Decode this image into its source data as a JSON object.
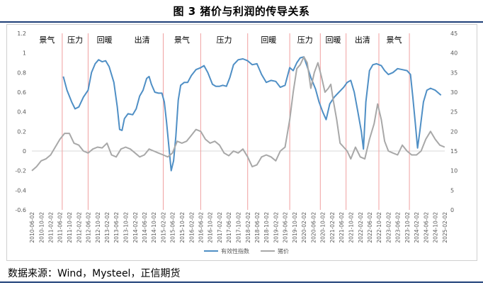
{
  "title": "图 3 猪价与利润的传导关系",
  "source": "数据来源：Wind，Mysteel，正信期货",
  "colors": {
    "efficiency": "#4f8fc5",
    "price": "#a8a8a8",
    "phase_line": "#f0a0a0",
    "axis_text": "#595959",
    "zero_line": "#d9d9d9"
  },
  "chart_data": {
    "type": "line",
    "left_axis": {
      "min": -0.6,
      "max": 1.2,
      "step": 0.2,
      "ticks": [
        "-0.6",
        "-0.4",
        "-0.2",
        "0",
        "0.2",
        "0.4",
        "0.6",
        "0.8",
        "1",
        "1.2"
      ]
    },
    "right_axis": {
      "min": 0,
      "max": 45,
      "step": 5,
      "ticks": [
        "0",
        "5",
        "10",
        "15",
        "20",
        "25",
        "30",
        "35",
        "40",
        "45"
      ]
    },
    "x_range": [
      "2010-06-02",
      "2025-02-02"
    ],
    "x_ticks": [
      "2010-06-02",
      "2010-10-02",
      "2011-02-02",
      "2011-06-02",
      "2011-10-02",
      "2012-02-02",
      "2012-06-02",
      "2012-10-02",
      "2013-02-02",
      "2013-06-02",
      "2013-10-02",
      "2014-02-02",
      "2014-06-02",
      "2014-10-02",
      "2015-02-02",
      "2015-06-02",
      "2015-10-02",
      "2016-02-02",
      "2016-06-02",
      "2016-10-02",
      "2017-02-02",
      "2017-06-02",
      "2017-10-02",
      "2018-02-02",
      "2018-06-02",
      "2018-10-02",
      "2019-02-02",
      "2019-06-02",
      "2019-10-02",
      "2020-02-02",
      "2020-06-02",
      "2020-10-02",
      "2021-02-02",
      "2021-06-02",
      "2021-10-02",
      "2022-02-02",
      "2022-06-02",
      "2022-10-02",
      "2023-02-02",
      "2023-06-02",
      "2023-10-02",
      "2024-02-02",
      "2024-06-02",
      "2024-10-02",
      "2025-02-02"
    ],
    "phase_boundaries": [
      "2011-07-01",
      "2012-06-01",
      "2015-02-01",
      "2016-06-01",
      "2018-02-01",
      "2019-08-01",
      "2020-09-01",
      "2021-08-01",
      "2022-10-01",
      "2023-11-01"
    ],
    "phases": [
      {
        "label": "景气",
        "start": "2010-06-02",
        "end": "2011-07-01"
      },
      {
        "label": "压力",
        "start": "2011-07-01",
        "end": "2012-06-01"
      },
      {
        "label": "回暖",
        "start": "2012-06-01",
        "end": "2013-08-01"
      },
      {
        "label": "出清",
        "start": "2013-08-01",
        "end": "2015-02-01"
      },
      {
        "label": "景气",
        "start": "2015-02-01",
        "end": "2016-06-01"
      },
      {
        "label": "压力",
        "start": "2016-06-01",
        "end": "2018-02-01"
      },
      {
        "label": "回暖",
        "start": "2018-02-01",
        "end": "2019-08-01"
      },
      {
        "label": "压力",
        "start": "2019-08-01",
        "end": "2020-09-01"
      },
      {
        "label": "回暖",
        "start": "2020-09-01",
        "end": "2021-08-01"
      },
      {
        "label": "出清",
        "start": "2021-08-01",
        "end": "2022-10-01"
      },
      {
        "label": "景气",
        "start": "2022-10-01",
        "end": "2023-11-01"
      }
    ],
    "series": [
      {
        "name": "有效性指数",
        "axis": "left",
        "points": [
          [
            "2011-07-15",
            0.76
          ],
          [
            "2011-09-01",
            0.62
          ],
          [
            "2011-11-01",
            0.5
          ],
          [
            "2011-12-15",
            0.43
          ],
          [
            "2012-02-01",
            0.45
          ],
          [
            "2012-04-01",
            0.55
          ],
          [
            "2012-06-01",
            0.62
          ],
          [
            "2012-07-15",
            0.8
          ],
          [
            "2012-09-01",
            0.89
          ],
          [
            "2012-10-15",
            0.93
          ],
          [
            "2012-12-01",
            0.91
          ],
          [
            "2013-01-15",
            0.92
          ],
          [
            "2013-03-01",
            0.86
          ],
          [
            "2013-05-01",
            0.7
          ],
          [
            "2013-06-15",
            0.45
          ],
          [
            "2013-07-15",
            0.22
          ],
          [
            "2013-08-15",
            0.21
          ],
          [
            "2013-09-15",
            0.33
          ],
          [
            "2013-11-01",
            0.38
          ],
          [
            "2014-01-01",
            0.37
          ],
          [
            "2014-02-15",
            0.43
          ],
          [
            "2014-04-01",
            0.56
          ],
          [
            "2014-05-15",
            0.62
          ],
          [
            "2014-07-01",
            0.74
          ],
          [
            "2014-08-01",
            0.76
          ],
          [
            "2014-09-01",
            0.68
          ],
          [
            "2014-10-15",
            0.6
          ],
          [
            "2014-12-01",
            0.59
          ],
          [
            "2015-01-15",
            0.59
          ],
          [
            "2015-02-15",
            0.5
          ],
          [
            "2015-03-15",
            0.3
          ],
          [
            "2015-04-15",
            0.05
          ],
          [
            "2015-05-15",
            -0.2
          ],
          [
            "2015-06-15",
            -0.1
          ],
          [
            "2015-07-15",
            0.15
          ],
          [
            "2015-08-15",
            0.52
          ],
          [
            "2015-09-15",
            0.67
          ],
          [
            "2015-11-01",
            0.7
          ],
          [
            "2015-12-15",
            0.7
          ],
          [
            "2016-02-01",
            0.77
          ],
          [
            "2016-04-01",
            0.83
          ],
          [
            "2016-06-01",
            0.85
          ],
          [
            "2016-07-15",
            0.87
          ],
          [
            "2016-09-01",
            0.8
          ],
          [
            "2016-11-01",
            0.68
          ],
          [
            "2016-12-15",
            0.66
          ],
          [
            "2017-02-01",
            0.66
          ],
          [
            "2017-03-15",
            0.67
          ],
          [
            "2017-05-01",
            0.66
          ],
          [
            "2017-06-15",
            0.75
          ],
          [
            "2017-08-01",
            0.88
          ],
          [
            "2017-10-01",
            0.93
          ],
          [
            "2017-12-01",
            0.94
          ],
          [
            "2018-02-01",
            0.92
          ],
          [
            "2018-04-01",
            0.88
          ],
          [
            "2018-06-01",
            0.89
          ],
          [
            "2018-08-01",
            0.78
          ],
          [
            "2018-10-01",
            0.7
          ],
          [
            "2018-12-01",
            0.72
          ],
          [
            "2019-02-01",
            0.71
          ],
          [
            "2019-04-01",
            0.65
          ],
          [
            "2019-06-01",
            0.67
          ],
          [
            "2019-08-01",
            0.85
          ],
          [
            "2019-09-15",
            0.82
          ],
          [
            "2019-11-01",
            0.9
          ],
          [
            "2019-12-15",
            0.95
          ],
          [
            "2020-02-01",
            0.96
          ],
          [
            "2020-03-15",
            0.86
          ],
          [
            "2020-05-01",
            0.75
          ],
          [
            "2020-07-01",
            0.63
          ],
          [
            "2020-08-15",
            0.5
          ],
          [
            "2020-10-01",
            0.4
          ],
          [
            "2020-11-15",
            0.32
          ],
          [
            "2021-01-01",
            0.48
          ],
          [
            "2021-03-01",
            0.55
          ],
          [
            "2021-05-01",
            0.6
          ],
          [
            "2021-07-01",
            0.65
          ],
          [
            "2021-08-15",
            0.7
          ],
          [
            "2021-10-01",
            0.72
          ],
          [
            "2021-11-15",
            0.6
          ],
          [
            "2022-01-01",
            0.4
          ],
          [
            "2022-02-15",
            0.2
          ],
          [
            "2022-03-15",
            0.02
          ],
          [
            "2022-04-15",
            0.5
          ],
          [
            "2022-06-01",
            0.82
          ],
          [
            "2022-07-15",
            0.88
          ],
          [
            "2022-09-01",
            0.89
          ],
          [
            "2022-11-01",
            0.87
          ],
          [
            "2022-12-15",
            0.82
          ],
          [
            "2023-02-01",
            0.78
          ],
          [
            "2023-04-01",
            0.8
          ],
          [
            "2023-06-01",
            0.84
          ],
          [
            "2023-08-01",
            0.83
          ],
          [
            "2023-10-01",
            0.82
          ],
          [
            "2023-11-15",
            0.78
          ],
          [
            "2023-12-15",
            0.55
          ],
          [
            "2024-01-15",
            0.3
          ],
          [
            "2024-02-15",
            0.03
          ],
          [
            "2024-03-15",
            0.2
          ],
          [
            "2024-05-01",
            0.5
          ],
          [
            "2024-06-15",
            0.62
          ],
          [
            "2024-08-01",
            0.64
          ],
          [
            "2024-10-01",
            0.62
          ],
          [
            "2024-12-15",
            0.57
          ]
        ]
      },
      {
        "name": "猪价",
        "axis": "right",
        "points": [
          [
            "2010-06-02",
            10.0
          ],
          [
            "2010-08-01",
            11.0
          ],
          [
            "2010-10-01",
            12.5
          ],
          [
            "2010-12-01",
            13.0
          ],
          [
            "2011-02-01",
            14.0
          ],
          [
            "2011-04-01",
            16.0
          ],
          [
            "2011-06-01",
            18.0
          ],
          [
            "2011-08-01",
            19.5
          ],
          [
            "2011-10-01",
            19.5
          ],
          [
            "2011-12-01",
            17.0
          ],
          [
            "2012-02-01",
            16.5
          ],
          [
            "2012-04-01",
            15.0
          ],
          [
            "2012-06-01",
            14.5
          ],
          [
            "2012-08-01",
            15.5
          ],
          [
            "2012-10-01",
            16.0
          ],
          [
            "2012-12-01",
            15.8
          ],
          [
            "2013-02-01",
            17.0
          ],
          [
            "2013-04-01",
            14.0
          ],
          [
            "2013-06-01",
            13.5
          ],
          [
            "2013-08-01",
            15.5
          ],
          [
            "2013-10-01",
            16.0
          ],
          [
            "2013-12-01",
            15.5
          ],
          [
            "2014-02-01",
            14.5
          ],
          [
            "2014-04-01",
            13.5
          ],
          [
            "2014-06-01",
            14.0
          ],
          [
            "2014-08-01",
            15.5
          ],
          [
            "2014-10-01",
            15.0
          ],
          [
            "2014-12-01",
            14.5
          ],
          [
            "2015-02-01",
            14.0
          ],
          [
            "2015-04-01",
            13.5
          ],
          [
            "2015-06-01",
            14.5
          ],
          [
            "2015-08-01",
            17.5
          ],
          [
            "2015-10-01",
            17.0
          ],
          [
            "2015-12-01",
            17.5
          ],
          [
            "2016-02-01",
            19.0
          ],
          [
            "2016-04-01",
            20.5
          ],
          [
            "2016-06-01",
            20.0
          ],
          [
            "2016-08-01",
            18.0
          ],
          [
            "2016-10-01",
            17.0
          ],
          [
            "2016-12-01",
            17.5
          ],
          [
            "2017-02-01",
            16.5
          ],
          [
            "2017-04-01",
            14.5
          ],
          [
            "2017-06-01",
            13.8
          ],
          [
            "2017-08-01",
            15.0
          ],
          [
            "2017-10-01",
            14.5
          ],
          [
            "2017-12-01",
            15.5
          ],
          [
            "2018-02-01",
            13.5
          ],
          [
            "2018-04-01",
            11.0
          ],
          [
            "2018-06-01",
            11.5
          ],
          [
            "2018-08-01",
            13.5
          ],
          [
            "2018-10-01",
            14.0
          ],
          [
            "2018-12-01",
            13.5
          ],
          [
            "2019-02-01",
            12.5
          ],
          [
            "2019-04-01",
            15.0
          ],
          [
            "2019-06-01",
            16.0
          ],
          [
            "2019-08-01",
            23.0
          ],
          [
            "2019-09-15",
            30.0
          ],
          [
            "2019-11-01",
            36.0
          ],
          [
            "2019-12-15",
            37.0
          ],
          [
            "2020-02-01",
            39.0
          ],
          [
            "2020-03-15",
            37.5
          ],
          [
            "2020-05-01",
            31.0
          ],
          [
            "2020-06-15",
            35.0
          ],
          [
            "2020-08-01",
            37.5
          ],
          [
            "2020-09-15",
            34.0
          ],
          [
            "2020-11-01",
            30.0
          ],
          [
            "2020-12-15",
            31.0
          ],
          [
            "2021-01-15",
            32.0
          ],
          [
            "2021-02-15",
            28.0
          ],
          [
            "2021-04-01",
            23.0
          ],
          [
            "2021-05-15",
            17.0
          ],
          [
            "2021-07-01",
            16.0
          ],
          [
            "2021-08-15",
            15.0
          ],
          [
            "2021-10-01",
            13.0
          ],
          [
            "2021-12-01",
            16.0
          ],
          [
            "2022-02-01",
            13.5
          ],
          [
            "2022-04-01",
            13.0
          ],
          [
            "2022-06-01",
            18.0
          ],
          [
            "2022-08-01",
            22.0
          ],
          [
            "2022-09-15",
            27.0
          ],
          [
            "2022-11-01",
            23.0
          ],
          [
            "2022-12-15",
            17.5
          ],
          [
            "2023-02-01",
            15.0
          ],
          [
            "2023-04-01",
            14.5
          ],
          [
            "2023-06-01",
            14.0
          ],
          [
            "2023-08-01",
            16.5
          ],
          [
            "2023-10-01",
            15.0
          ],
          [
            "2023-12-01",
            14.0
          ],
          [
            "2024-02-01",
            14.0
          ],
          [
            "2024-04-01",
            15.0
          ],
          [
            "2024-06-01",
            18.0
          ],
          [
            "2024-08-01",
            20.0
          ],
          [
            "2024-10-01",
            18.0
          ],
          [
            "2024-12-01",
            16.5
          ],
          [
            "2025-02-01",
            16.0
          ]
        ]
      }
    ],
    "legend_position": "bottom-center",
    "grid": false
  }
}
